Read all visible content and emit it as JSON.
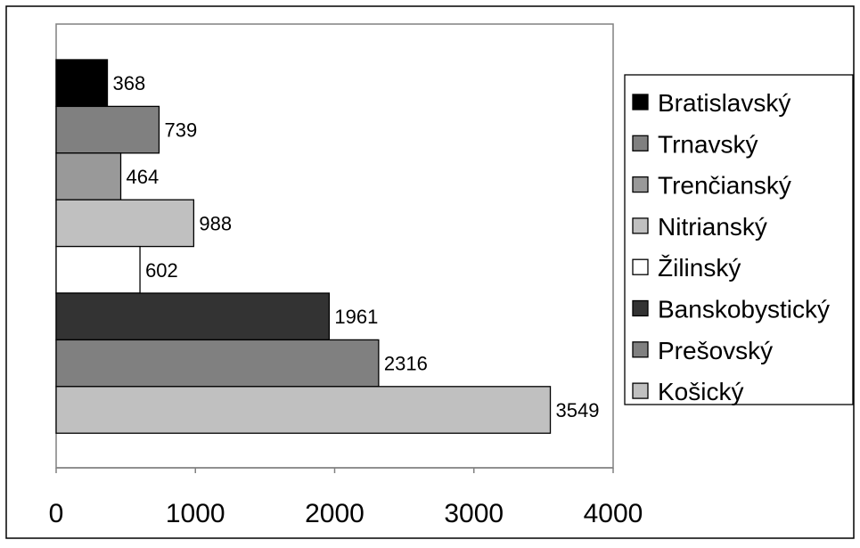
{
  "chart_data": {
    "type": "bar",
    "orientation": "horizontal",
    "title": "",
    "xlabel": "",
    "ylabel": "",
    "xlim": [
      0,
      4000
    ],
    "x_ticks": [
      "0",
      "1000",
      "2000",
      "3000",
      "4000"
    ],
    "grid": false,
    "legend_position": "right",
    "categories": [
      "Bratislavský",
      "Trnavský",
      "Trenčianský",
      "Nitrianský",
      "Žilinský",
      "Banskobystický",
      "Prešovský",
      "Košický"
    ],
    "values": [
      368,
      739,
      464,
      988,
      602,
      1961,
      2316,
      3549
    ],
    "value_labels": [
      "368",
      "739",
      "464",
      "988",
      "602",
      "1961",
      "2316",
      "3549"
    ],
    "colors": [
      "#000000",
      "#808080",
      "#999999",
      "#c0c0c0",
      "#ffffff",
      "#333333",
      "#808080",
      "#c0c0c0"
    ]
  }
}
